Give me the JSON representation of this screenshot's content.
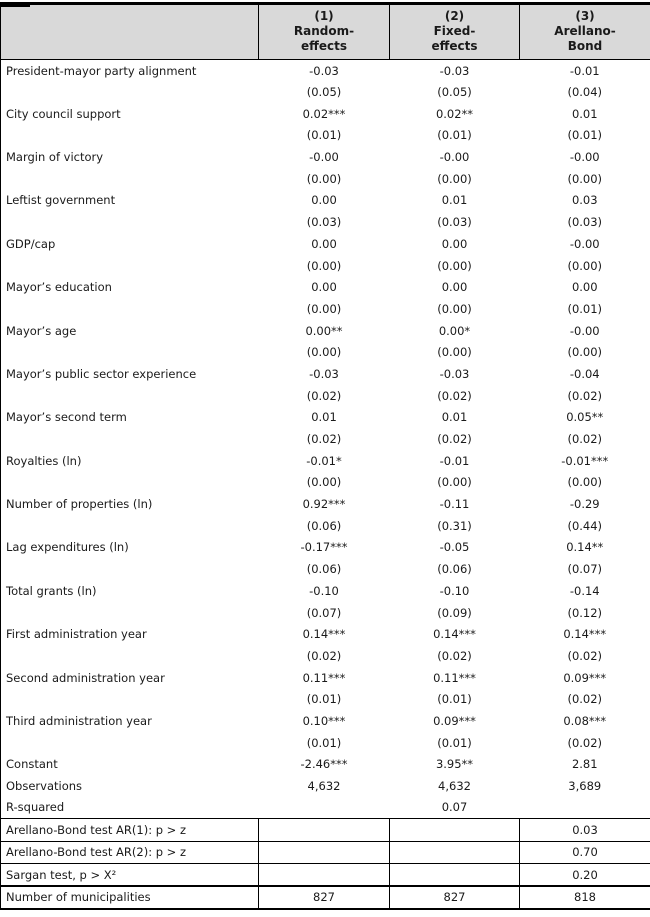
{
  "header": {
    "columns": [
      {
        "num": "(1)",
        "label": "Random-\neffects"
      },
      {
        "num": "(2)",
        "label": "Fixed-\neffects"
      },
      {
        "num": "(3)",
        "label": "Arellano-\nBond"
      }
    ]
  },
  "rows": [
    {
      "label": "President-mayor party alignment",
      "coef": [
        "-0.03",
        "-0.03",
        "-0.01"
      ],
      "se": [
        "(0.05)",
        "(0.05)",
        "(0.04)"
      ]
    },
    {
      "label": "City council support",
      "coef": [
        "0.02***",
        "0.02**",
        "0.01"
      ],
      "se": [
        "(0.01)",
        "(0.01)",
        "(0.01)"
      ]
    },
    {
      "label": "Margin of victory",
      "coef": [
        "-0.00",
        "-0.00",
        "-0.00"
      ],
      "se": [
        "(0.00)",
        "(0.00)",
        "(0.00)"
      ]
    },
    {
      "label": "Leftist government",
      "coef": [
        "0.00",
        "0.01",
        "0.03"
      ],
      "se": [
        "(0.03)",
        "(0.03)",
        "(0.03)"
      ]
    },
    {
      "label": "GDP/cap",
      "coef": [
        "0.00",
        "0.00",
        "-0.00"
      ],
      "se": [
        "(0.00)",
        "(0.00)",
        "(0.00)"
      ]
    },
    {
      "label": "Mayor’s education",
      "coef": [
        "0.00",
        "0.00",
        "0.00"
      ],
      "se": [
        "(0.00)",
        "(0.00)",
        "(0.01)"
      ]
    },
    {
      "label": "Mayor’s age",
      "coef": [
        "0.00**",
        "0.00*",
        "-0.00"
      ],
      "se": [
        "(0.00)",
        "(0.00)",
        "(0.00)"
      ]
    },
    {
      "label": "Mayor’s public sector experience",
      "coef": [
        "-0.03",
        "-0.03",
        "-0.04"
      ],
      "se": [
        "(0.02)",
        "(0.02)",
        "(0.02)"
      ]
    },
    {
      "label": "Mayor’s second term",
      "coef": [
        "0.01",
        "0.01",
        "0.05**"
      ],
      "se": [
        "(0.02)",
        "(0.02)",
        "(0.02)"
      ]
    },
    {
      "label": "Royalties (ln)",
      "coef": [
        "-0.01*",
        "-0.01",
        "-0.01***"
      ],
      "se": [
        "(0.00)",
        "(0.00)",
        "(0.00)"
      ]
    },
    {
      "label": "Number of properties (ln)",
      "coef": [
        "0.92***",
        "-0.11",
        "-0.29"
      ],
      "se": [
        "(0.06)",
        "(0.31)",
        "(0.44)"
      ]
    },
    {
      "label": "Lag expenditures (ln)",
      "coef": [
        "-0.17***",
        "-0.05",
        "0.14**"
      ],
      "se": [
        "(0.06)",
        "(0.06)",
        "(0.07)"
      ]
    },
    {
      "label": "Total grants (ln)",
      "coef": [
        "-0.10",
        "-0.10",
        "-0.14"
      ],
      "se": [
        "(0.07)",
        "(0.09)",
        "(0.12)"
      ]
    },
    {
      "label": "First administration year",
      "coef": [
        "0.14***",
        "0.14***",
        "0.14***"
      ],
      "se": [
        "(0.02)",
        "(0.02)",
        "(0.02)"
      ]
    },
    {
      "label": "Second administration year",
      "coef": [
        "0.11***",
        "0.11***",
        "0.09***"
      ],
      "se": [
        "(0.01)",
        "(0.01)",
        "(0.02)"
      ]
    },
    {
      "label": "Third administration year",
      "coef": [
        "0.10***",
        "0.09***",
        "0.08***"
      ],
      "se": [
        "(0.01)",
        "(0.01)",
        "(0.02)"
      ]
    }
  ],
  "stats": [
    {
      "label": "Constant",
      "values": [
        "-2.46***",
        "3.95**",
        "2.81"
      ]
    },
    {
      "label": "Observations",
      "values": [
        "4,632",
        "4,632",
        "3,689"
      ]
    },
    {
      "label": "R-squared",
      "values": [
        "",
        "0.07",
        ""
      ]
    }
  ],
  "tests": [
    {
      "label": "Arellano-Bond test AR(1): p > z",
      "values": [
        "",
        "",
        "0.03"
      ]
    },
    {
      "label": "Arellano-Bond test AR(2): p > z",
      "values": [
        "",
        "",
        "0.70"
      ]
    },
    {
      "label": "Sargan test, p > X²",
      "values": [
        "",
        "",
        "0.20"
      ]
    },
    {
      "label": "Number of municipalities",
      "values": [
        "827",
        "827",
        "818"
      ]
    }
  ]
}
